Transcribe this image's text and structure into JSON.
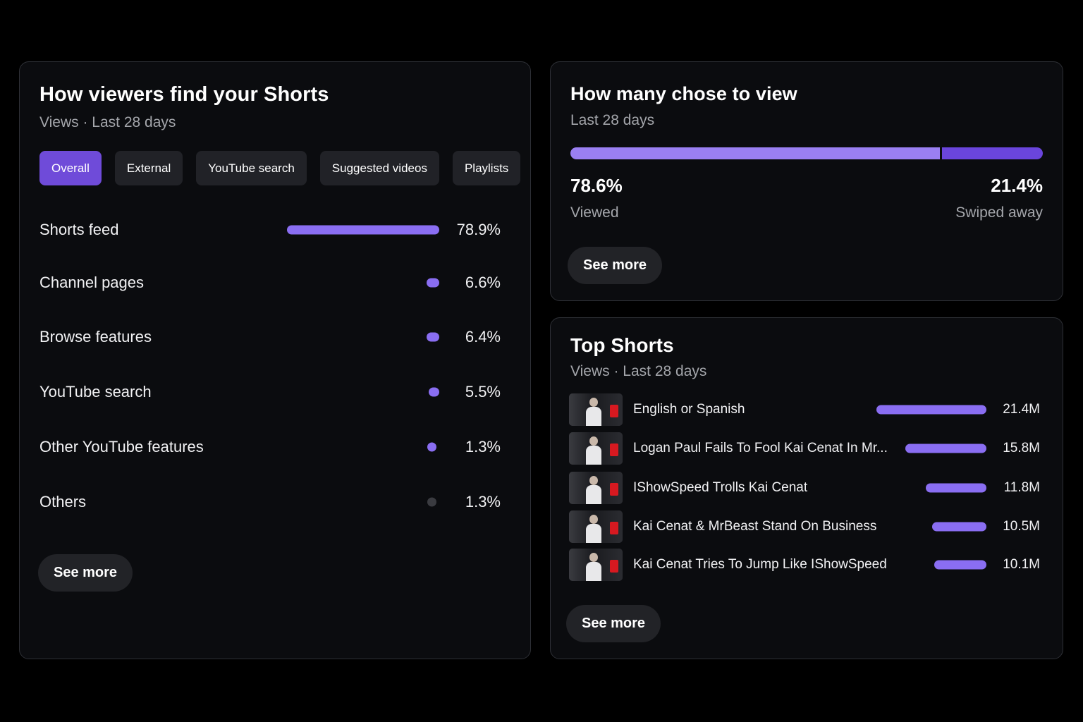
{
  "traffic": {
    "title": "How viewers find your Shorts",
    "subtitle": "Views · Last 28 days",
    "tabs": [
      {
        "label": "Overall",
        "active": true
      },
      {
        "label": "External",
        "active": false
      },
      {
        "label": "YouTube search",
        "active": false
      },
      {
        "label": "Suggested videos",
        "active": false
      },
      {
        "label": "Playlists",
        "active": false
      }
    ],
    "sources": [
      {
        "label": "Shorts feed",
        "value": "78.9%",
        "share": 0.789,
        "color": "#8a6ef2"
      },
      {
        "label": "Channel pages",
        "value": "6.6%",
        "share": 0.066,
        "color": "#8a6ef2"
      },
      {
        "label": "Browse features",
        "value": "6.4%",
        "share": 0.064,
        "color": "#8a6ef2"
      },
      {
        "label": "YouTube search",
        "value": "5.5%",
        "share": 0.055,
        "color": "#8a6ef2"
      },
      {
        "label": "Other YouTube features",
        "value": "1.3%",
        "share": 0.013,
        "color": "#8a6ef2"
      },
      {
        "label": "Others",
        "value": "1.3%",
        "share": 0.013,
        "color": "#3a3b40"
      }
    ],
    "see_more": "See more"
  },
  "chose": {
    "title": "How many chose to view",
    "subtitle": "Last 28 days",
    "viewed": {
      "pct": "78.6%",
      "label": "Viewed",
      "share": 0.786
    },
    "swiped": {
      "pct": "21.4%",
      "label": "Swiped away",
      "share": 0.214
    },
    "see_more": "See more"
  },
  "top_shorts": {
    "title": "Top Shorts",
    "subtitle": "Views · Last 28 days",
    "items": [
      {
        "title": "English or Spanish",
        "views": "21.4M",
        "views_millions": 21.4
      },
      {
        "title": "Logan Paul Fails To Fool Kai Cenat In Mr...",
        "views": "15.8M",
        "views_millions": 15.8
      },
      {
        "title": "IShowSpeed Trolls Kai Cenat",
        "views": "11.8M",
        "views_millions": 11.8
      },
      {
        "title": "Kai Cenat & MrBeast Stand On Business",
        "views": "10.5M",
        "views_millions": 10.5
      },
      {
        "title": "Kai Cenat Tries To Jump Like IShowSpeed",
        "views": "10.1M",
        "views_millions": 10.1
      }
    ],
    "see_more": "See more"
  },
  "colors": {
    "accent": "#6f4bd9",
    "bar": "#8a6ef2",
    "viewed": "#9a7ff2",
    "swiped": "#6a45dc"
  }
}
